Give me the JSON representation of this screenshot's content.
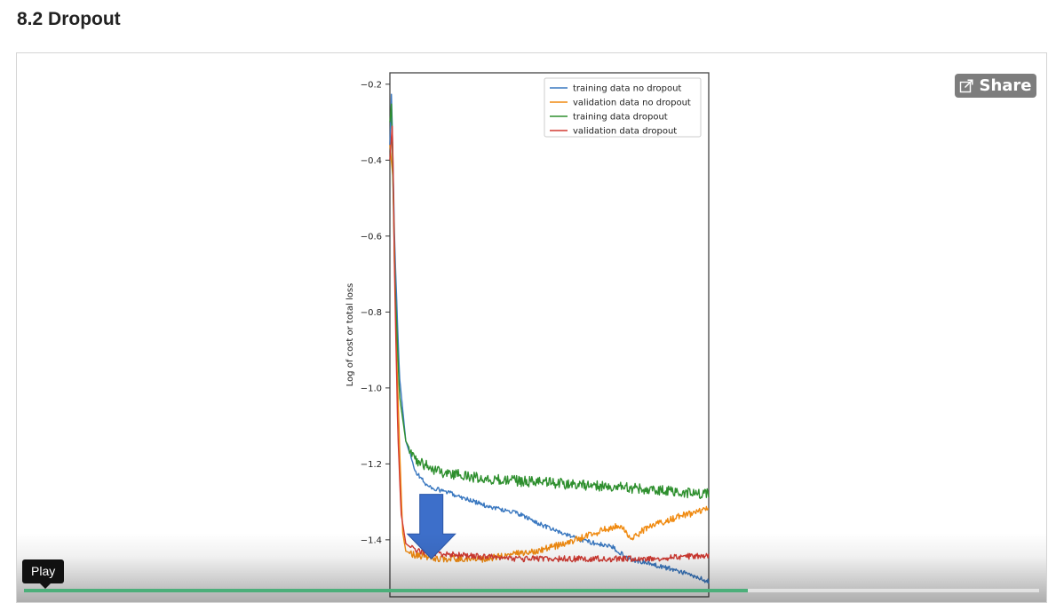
{
  "page": {
    "heading": "8.2 Dropout"
  },
  "video": {
    "share_label": "Share",
    "tooltip_label": "Play",
    "progress": 0.713
  },
  "colors": {
    "training_no_dropout": "#3a78c0",
    "validation_no_dropout": "#f08a10",
    "training_dropout": "#2e8f2e",
    "validation_dropout": "#d23a32",
    "arrow": "#3d6fca",
    "progress": "#4caf7a"
  },
  "chart_data": {
    "type": "line",
    "title": "",
    "xlabel": "",
    "ylabel": "Log of cost or total loss",
    "ylim": [
      -1.55,
      -0.17
    ],
    "yticks": [
      -0.2,
      -0.4,
      -0.6,
      -0.8,
      -1.0,
      -1.2,
      -1.4
    ],
    "ytick_labels": [
      "−0.2",
      "−0.4",
      "−0.6",
      "−0.8",
      "−1.0",
      "−1.2",
      "−1.4"
    ],
    "xlim": [
      0,
      100
    ],
    "legend_position": "top-right",
    "series": [
      {
        "name": "training data no dropout",
        "color": "#3a78c0",
        "noise": 0.006,
        "points": [
          [
            0,
            -0.36
          ],
          [
            0.5,
            -0.22
          ],
          [
            1.5,
            -0.62
          ],
          [
            3,
            -0.97
          ],
          [
            5,
            -1.14
          ],
          [
            8,
            -1.22
          ],
          [
            12,
            -1.26
          ],
          [
            20,
            -1.28
          ],
          [
            30,
            -1.31
          ],
          [
            40,
            -1.33
          ],
          [
            50,
            -1.37
          ],
          [
            60,
            -1.4
          ],
          [
            70,
            -1.42
          ],
          [
            75,
            -1.45
          ],
          [
            80,
            -1.46
          ],
          [
            90,
            -1.48
          ],
          [
            100,
            -1.51
          ]
        ]
      },
      {
        "name": "validation data no dropout",
        "color": "#f08a10",
        "noise": 0.009,
        "points": [
          [
            0,
            -0.36
          ],
          [
            1,
            -0.45
          ],
          [
            2,
            -0.87
          ],
          [
            3,
            -1.15
          ],
          [
            4,
            -1.38
          ],
          [
            5,
            -1.43
          ],
          [
            8,
            -1.44
          ],
          [
            15,
            -1.45
          ],
          [
            30,
            -1.45
          ],
          [
            45,
            -1.43
          ],
          [
            55,
            -1.41
          ],
          [
            65,
            -1.38
          ],
          [
            72,
            -1.36
          ],
          [
            76,
            -1.4
          ],
          [
            80,
            -1.37
          ],
          [
            90,
            -1.34
          ],
          [
            100,
            -1.32
          ]
        ]
      },
      {
        "name": "training data dropout",
        "color": "#2e8f2e",
        "noise": 0.014,
        "points": [
          [
            0,
            -0.3
          ],
          [
            0.5,
            -0.25
          ],
          [
            1.5,
            -0.7
          ],
          [
            3,
            -1.02
          ],
          [
            5,
            -1.14
          ],
          [
            8,
            -1.19
          ],
          [
            15,
            -1.22
          ],
          [
            30,
            -1.24
          ],
          [
            50,
            -1.25
          ],
          [
            70,
            -1.26
          ],
          [
            85,
            -1.27
          ],
          [
            100,
            -1.28
          ]
        ]
      },
      {
        "name": "validation data dropout",
        "color": "#d23a32",
        "noise": 0.008,
        "points": [
          [
            0,
            -0.4
          ],
          [
            0.8,
            -0.3
          ],
          [
            1.5,
            -0.72
          ],
          [
            2.5,
            -1.12
          ],
          [
            3.5,
            -1.33
          ],
          [
            5,
            -1.41
          ],
          [
            8,
            -1.43
          ],
          [
            20,
            -1.44
          ],
          [
            40,
            -1.45
          ],
          [
            60,
            -1.45
          ],
          [
            80,
            -1.45
          ],
          [
            100,
            -1.44
          ]
        ]
      }
    ],
    "annotation": {
      "type": "down-arrow",
      "color": "#3d6fca",
      "x": 13,
      "y_top": -1.28,
      "y_bottom": -1.45
    }
  }
}
